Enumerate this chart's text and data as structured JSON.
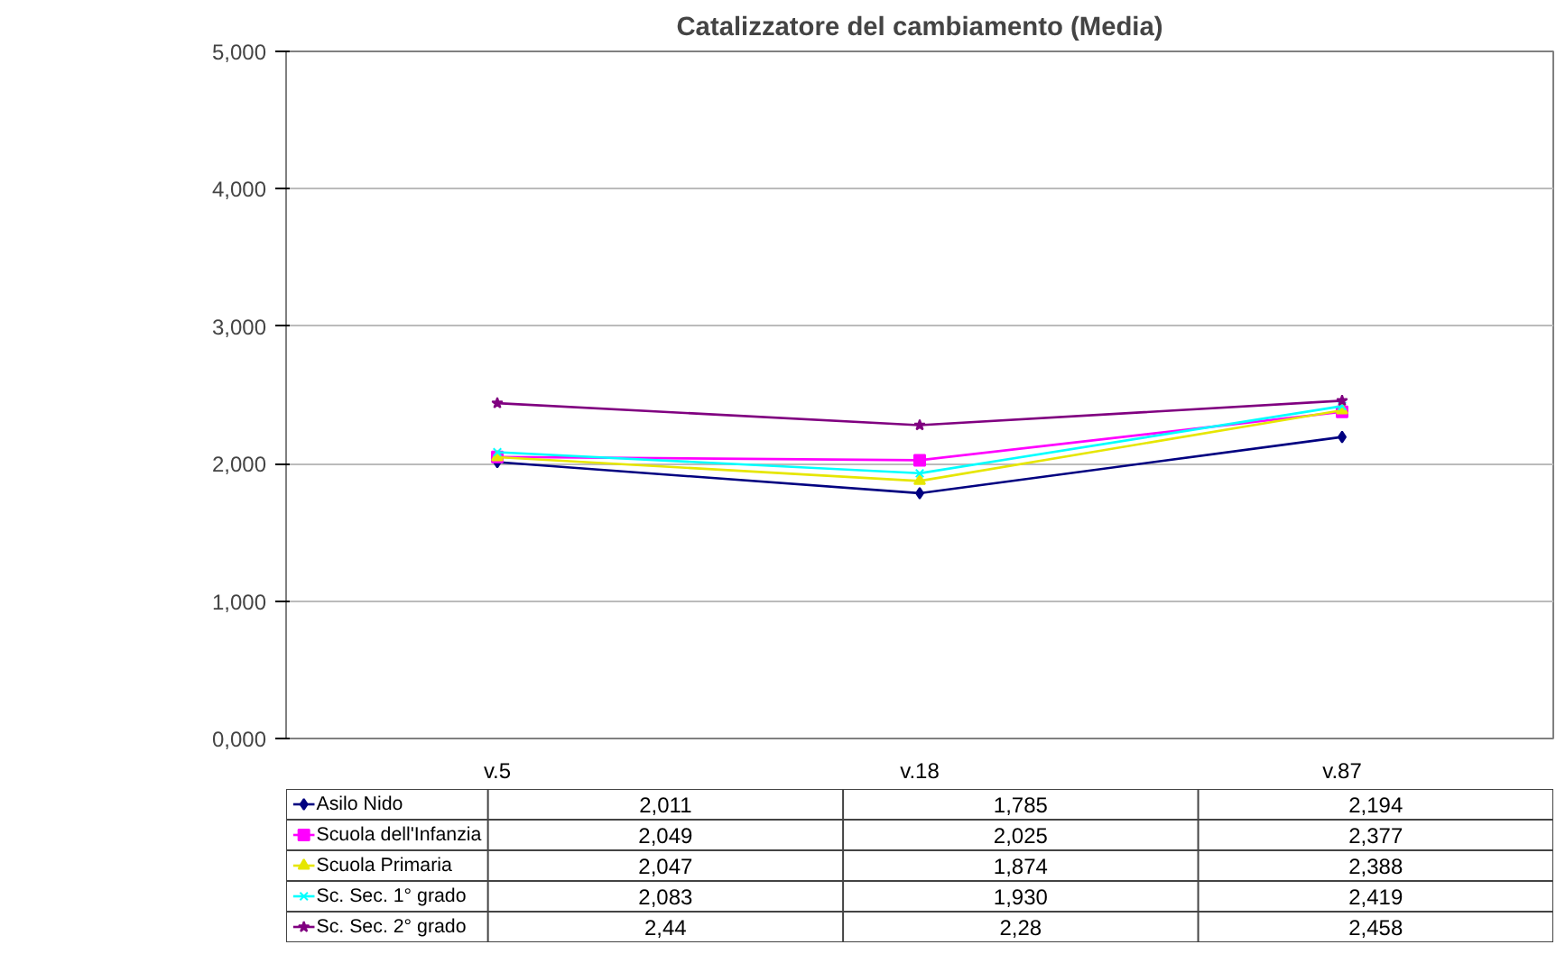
{
  "chart_data": {
    "type": "line",
    "title": "Catalizzatore del cambiamento (Media)",
    "categories": [
      "v.5",
      "v.18",
      "v.87"
    ],
    "ylim": [
      0,
      5
    ],
    "yticks": [
      {
        "value": 0,
        "label": "0,000"
      },
      {
        "value": 1,
        "label": "1,000"
      },
      {
        "value": 2,
        "label": "2,000"
      },
      {
        "value": 3,
        "label": "3,000"
      },
      {
        "value": 4,
        "label": "4,000"
      },
      {
        "value": 5,
        "label": "5,000"
      }
    ],
    "grid": "y",
    "legend": "bottom",
    "series": [
      {
        "name": "Asilo Nido",
        "color": "#000080",
        "marker": "diamond",
        "values": [
          2.011,
          1.785,
          2.194
        ],
        "value_labels": [
          "2,011",
          "1,785",
          "2,194"
        ]
      },
      {
        "name": "Scuola dell'Infanzia",
        "color": "#ff00ff",
        "marker": "square",
        "values": [
          2.049,
          2.025,
          2.377
        ],
        "value_labels": [
          "2,049",
          "2,025",
          "2,377"
        ]
      },
      {
        "name": "Scuola Primaria",
        "color": "#e6e600",
        "marker": "triangle",
        "values": [
          2.047,
          1.874,
          2.388
        ],
        "value_labels": [
          "2,047",
          "1,874",
          "2,388"
        ]
      },
      {
        "name": "Sc. Sec. 1° grado",
        "color": "#00ffff",
        "marker": "cross",
        "values": [
          2.083,
          1.93,
          2.419
        ],
        "value_labels": [
          "2,083",
          "1,930",
          "2,419"
        ]
      },
      {
        "name": "Sc. Sec. 2° grado",
        "color": "#800080",
        "marker": "star",
        "values": [
          2.44,
          2.28,
          2.458
        ],
        "value_labels": [
          "2,44",
          "2,28",
          "2,458"
        ]
      }
    ]
  }
}
